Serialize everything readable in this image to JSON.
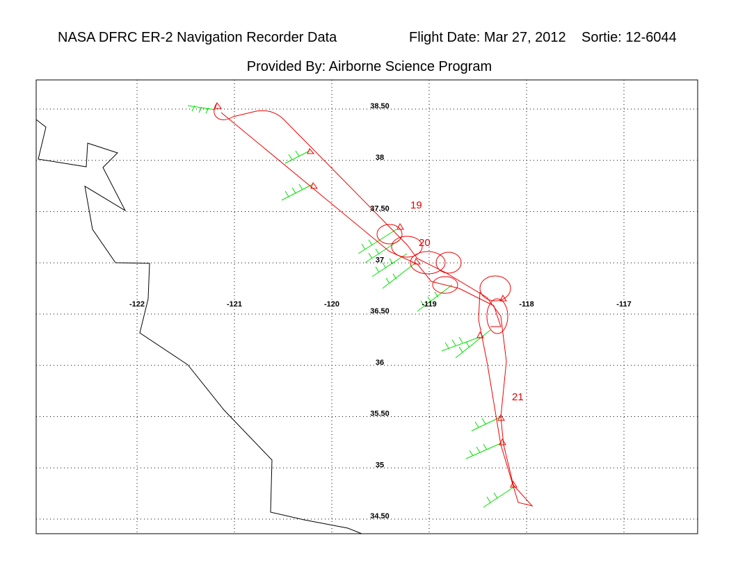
{
  "header": {
    "title": "NASA DFRC ER-2 Navigation Recorder Data",
    "flight_date": "Flight Date: Mar 27, 2012",
    "sortie": "Sortie: 12-6044",
    "subtitle": "Provided By: Airborne Science Program"
  },
  "map": {
    "xlim": [
      -123.036,
      -116.243
    ],
    "ylim": [
      34.358,
      38.785
    ],
    "xticks": [
      -122,
      -121,
      -120,
      -119,
      -118,
      -117
    ],
    "yticks": [
      {
        "value": 38.5,
        "label": "38.50"
      },
      38,
      {
        "value": 37.5,
        "label": "37.50"
      },
      37,
      {
        "value": 36.5,
        "label": "36.50"
      },
      36,
      {
        "value": 35.5,
        "label": "35.50"
      },
      35,
      {
        "value": 34.5,
        "label": "34.50"
      }
    ],
    "grid": true,
    "annotations": [
      "19",
      "20",
      "21"
    ]
  }
}
